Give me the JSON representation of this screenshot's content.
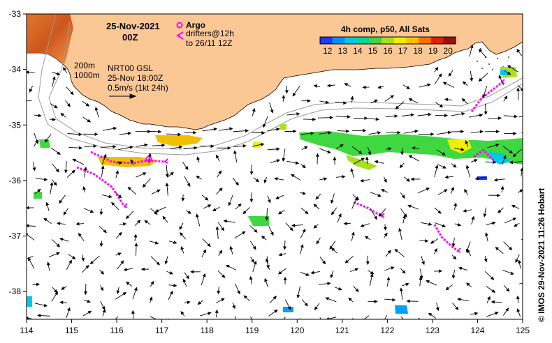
{
  "title": {
    "date": "25-Nov-2021",
    "time": "00Z"
  },
  "legend": {
    "argo_label": "Argo",
    "drifters_label_1": "drifters@12h",
    "drifters_label_2": "to 26/11 12Z",
    "depth_200": "200m",
    "depth_1000": "1000m",
    "velocity_source": "NRT00 GSL",
    "velocity_time": "25-Nov 18:00Z",
    "velocity_scale": "0.5m/s (1kt 24h)"
  },
  "colorbar": {
    "title": "4h comp, p50, All Sats",
    "ticks": [
      "12",
      "13",
      "14",
      "15",
      "16",
      "17",
      "18",
      "19",
      "20"
    ],
    "colors": [
      "#1a3cff",
      "#0090ff",
      "#00c8e8",
      "#00d89a",
      "#40d840",
      "#a8e020",
      "#f0f000",
      "#ffc000",
      "#ff7000",
      "#e02000",
      "#9a1010"
    ]
  },
  "axes": {
    "x_ticks": [
      "114",
      "115",
      "116",
      "117",
      "118",
      "119",
      "120",
      "121",
      "122",
      "123",
      "124",
      "125"
    ],
    "y_ticks": [
      "-33",
      "-34",
      "-35",
      "-36",
      "-37",
      "-38"
    ],
    "lon_range": [
      114,
      125
    ],
    "lat_range": [
      -38.5,
      -33
    ]
  },
  "credit": "© IMOS 29-Nov-2021 11:26 Hobart",
  "colors": {
    "land": "#fbc794",
    "argo": "#ff00ff",
    "drifter": "#ff00ff",
    "isobath": "#9a9a9a",
    "arrow": "#000000"
  }
}
